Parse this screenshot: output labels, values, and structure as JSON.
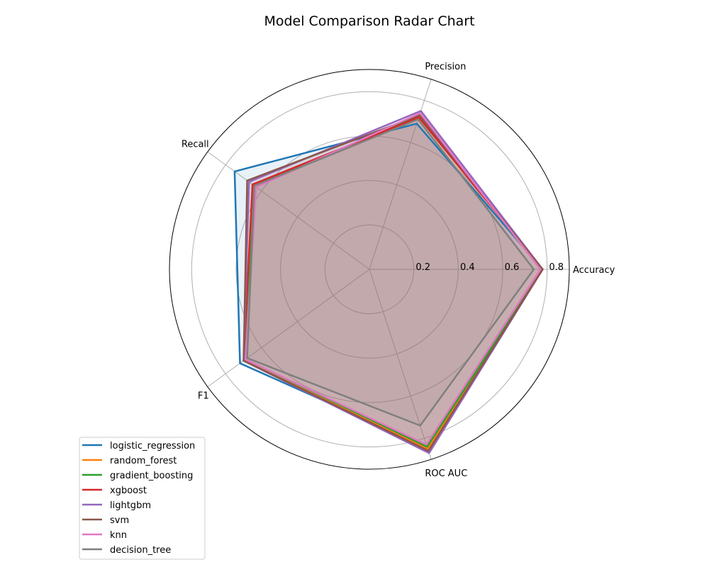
{
  "chart_data": {
    "type": "radar",
    "title": "Model Comparison Radar Chart",
    "axes": [
      "Accuracy",
      "Precision",
      "Recall",
      "F1",
      "ROC AUC"
    ],
    "rlim": [
      0,
      0.9
    ],
    "rticks": [
      0.2,
      0.4,
      0.6,
      0.8
    ],
    "rtick_labels": [
      "0.2",
      "0.4",
      "0.6",
      "0.8"
    ],
    "grid": true,
    "legend_position": "lower-left",
    "series": [
      {
        "name": "logistic_regression",
        "color": "#1f77b4",
        "values": [
          0.78,
          0.69,
          0.75,
          0.72,
          0.84
        ]
      },
      {
        "name": "random_forest",
        "color": "#ff7f0e",
        "values": [
          0.78,
          0.72,
          0.65,
          0.7,
          0.85
        ]
      },
      {
        "name": "gradient_boosting",
        "color": "#2ca02c",
        "values": [
          0.78,
          0.73,
          0.64,
          0.69,
          0.84
        ]
      },
      {
        "name": "xgboost",
        "color": "#d62728",
        "values": [
          0.78,
          0.72,
          0.65,
          0.7,
          0.86
        ]
      },
      {
        "name": "lightgbm",
        "color": "#9467bd",
        "values": [
          0.78,
          0.75,
          0.67,
          0.7,
          0.87
        ]
      },
      {
        "name": "svm",
        "color": "#8c564b",
        "values": [
          0.78,
          0.73,
          0.68,
          0.7,
          0.86
        ]
      },
      {
        "name": "knn",
        "color": "#e377c2",
        "values": [
          0.77,
          0.74,
          0.63,
          0.69,
          0.83
        ]
      },
      {
        "name": "decision_tree",
        "color": "#7f7f7f",
        "values": [
          0.74,
          0.71,
          0.64,
          0.68,
          0.74
        ]
      }
    ]
  }
}
